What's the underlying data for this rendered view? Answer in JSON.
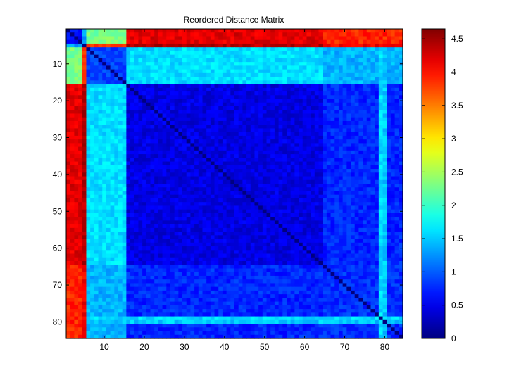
{
  "chart_data": {
    "type": "heatmap",
    "title": "Reordered Distance Matrix",
    "xlabel": "",
    "ylabel": "",
    "n": 84,
    "xlim": [
      0.5,
      84.5
    ],
    "ylim": [
      0.5,
      84.5
    ],
    "x_ticks": [
      10,
      20,
      30,
      40,
      50,
      60,
      70,
      80
    ],
    "y_ticks": [
      10,
      20,
      30,
      40,
      50,
      60,
      70,
      80
    ],
    "colorbar": {
      "colormap": "jet",
      "range": [
        0,
        4.65
      ],
      "ticks": [
        0,
        0.5,
        1,
        1.5,
        2,
        2.5,
        3,
        3.5,
        4,
        4.5
      ]
    },
    "groups": [
      {
        "from": 1,
        "to": 4
      },
      {
        "from": 5,
        "to": 5
      },
      {
        "from": 6,
        "to": 15
      },
      {
        "from": 16,
        "to": 64
      },
      {
        "from": 65,
        "to": 84
      }
    ],
    "group_distances": [
      [
        0.6,
        1.3,
        2.3,
        4.2,
        3.9
      ],
      [
        1.3,
        0.0,
        3.9,
        4.4,
        4.1
      ],
      [
        2.3,
        3.9,
        0.9,
        1.6,
        1.4
      ],
      [
        4.2,
        4.4,
        1.6,
        0.45,
        0.75
      ],
      [
        3.9,
        4.1,
        1.4,
        0.75,
        0.8
      ]
    ],
    "bright_rows": [
      {
        "index": 79,
        "distance": 1.6
      },
      {
        "index": 80,
        "distance": 1.5
      }
    ],
    "diagonal_value": 0
  }
}
